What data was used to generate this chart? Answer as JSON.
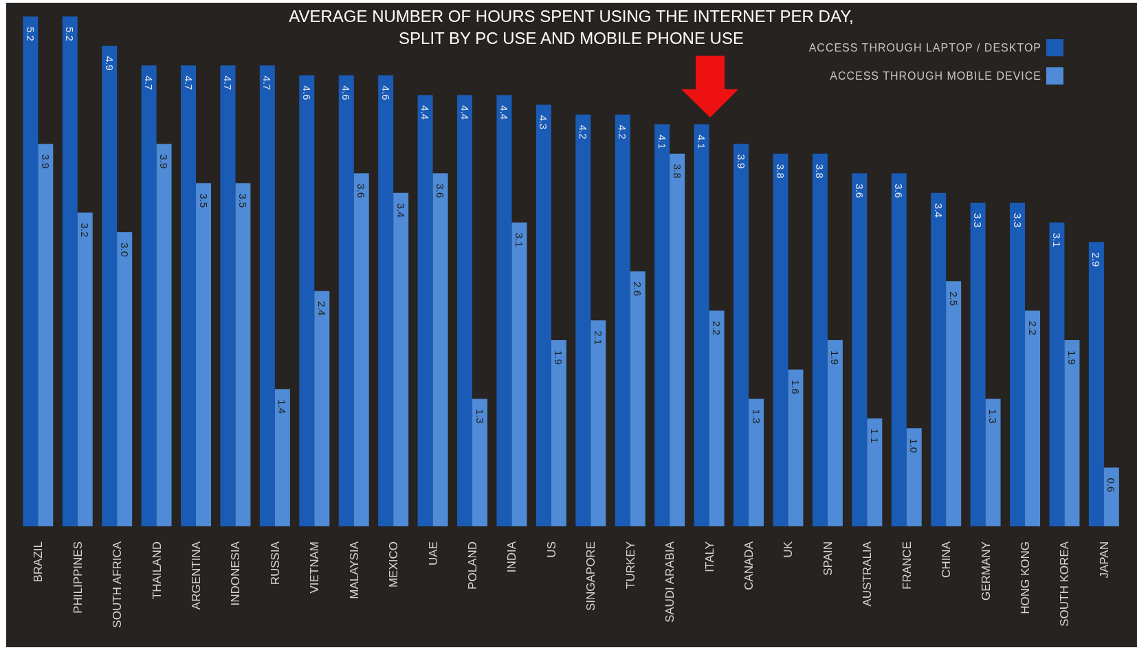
{
  "chart_data": {
    "type": "bar",
    "title": "AVERAGE NUMBER OF HOURS SPENT USING THE INTERNET PER DAY,\nSPLIT BY PC USE AND MOBILE PHONE USE",
    "categories": [
      "BRAZIL",
      "PHILIPPINES",
      "SOUTH AFRICA",
      "THAILAND",
      "ARGENTINA",
      "INDONESIA",
      "RUSSIA",
      "VIETNAM",
      "MALAYSIA",
      "MEXICO",
      "UAE",
      "POLAND",
      "INDIA",
      "US",
      "SINGAPORE",
      "TURKEY",
      "SAUDI ARABIA",
      "ITALY",
      "CANADA",
      "UK",
      "SPAIN",
      "AUSTRALIA",
      "FRANCE",
      "CHINA",
      "GERMANY",
      "HONG KONG",
      "SOUTH KOREA",
      "JAPAN"
    ],
    "series": [
      {
        "name": "ACCESS THROUGH LAPTOP / DESKTOP",
        "color": "#1a5bb6",
        "values": [
          5.2,
          5.2,
          4.9,
          4.7,
          4.7,
          4.7,
          4.7,
          4.6,
          4.6,
          4.6,
          4.4,
          4.4,
          4.4,
          4.3,
          4.2,
          4.2,
          4.1,
          4.1,
          3.9,
          3.8,
          3.8,
          3.6,
          3.6,
          3.4,
          3.3,
          3.3,
          3.1,
          2.9
        ],
        "value_labels": [
          "5.2",
          "5.2",
          "4.9",
          "4.7",
          "4.7",
          "4.7",
          "4.7",
          "4.6",
          "4.6",
          "4.6",
          "4.4",
          "4.4",
          "4.4",
          "4.3",
          "4.2",
          "4.2",
          "4.1",
          "4.1",
          "3.9",
          "3.8",
          "3.8",
          "3.6",
          "3.6",
          "3.4",
          "3.3",
          "3.3",
          "3.1",
          "2.9"
        ]
      },
      {
        "name": "ACCESS THROUGH MOBILE DEVICE",
        "color": "#4f8bd6",
        "values": [
          3.9,
          3.2,
          3.0,
          3.9,
          3.5,
          3.5,
          1.4,
          2.4,
          3.6,
          3.4,
          3.6,
          1.3,
          3.1,
          1.9,
          2.1,
          2.6,
          3.8,
          2.2,
          1.3,
          1.6,
          1.9,
          1.1,
          1.0,
          2.5,
          1.3,
          2.2,
          1.9,
          0.6
        ],
        "value_labels": [
          "3.9",
          "3.2",
          "3.0",
          "3.9",
          "3.5",
          "3.5",
          "1.4",
          "2.4",
          "3.6",
          "3.4",
          "3.6",
          "1.3",
          "3.1",
          "1.9",
          "2.1",
          "2.6",
          "3.8",
          "2.2",
          "1.3",
          "1.6",
          "1.9",
          "1.1",
          "1.0",
          "2.5",
          "1.3",
          "2.2",
          "1.9",
          "0.6"
        ]
      }
    ],
    "legend": "top right"
  }
}
